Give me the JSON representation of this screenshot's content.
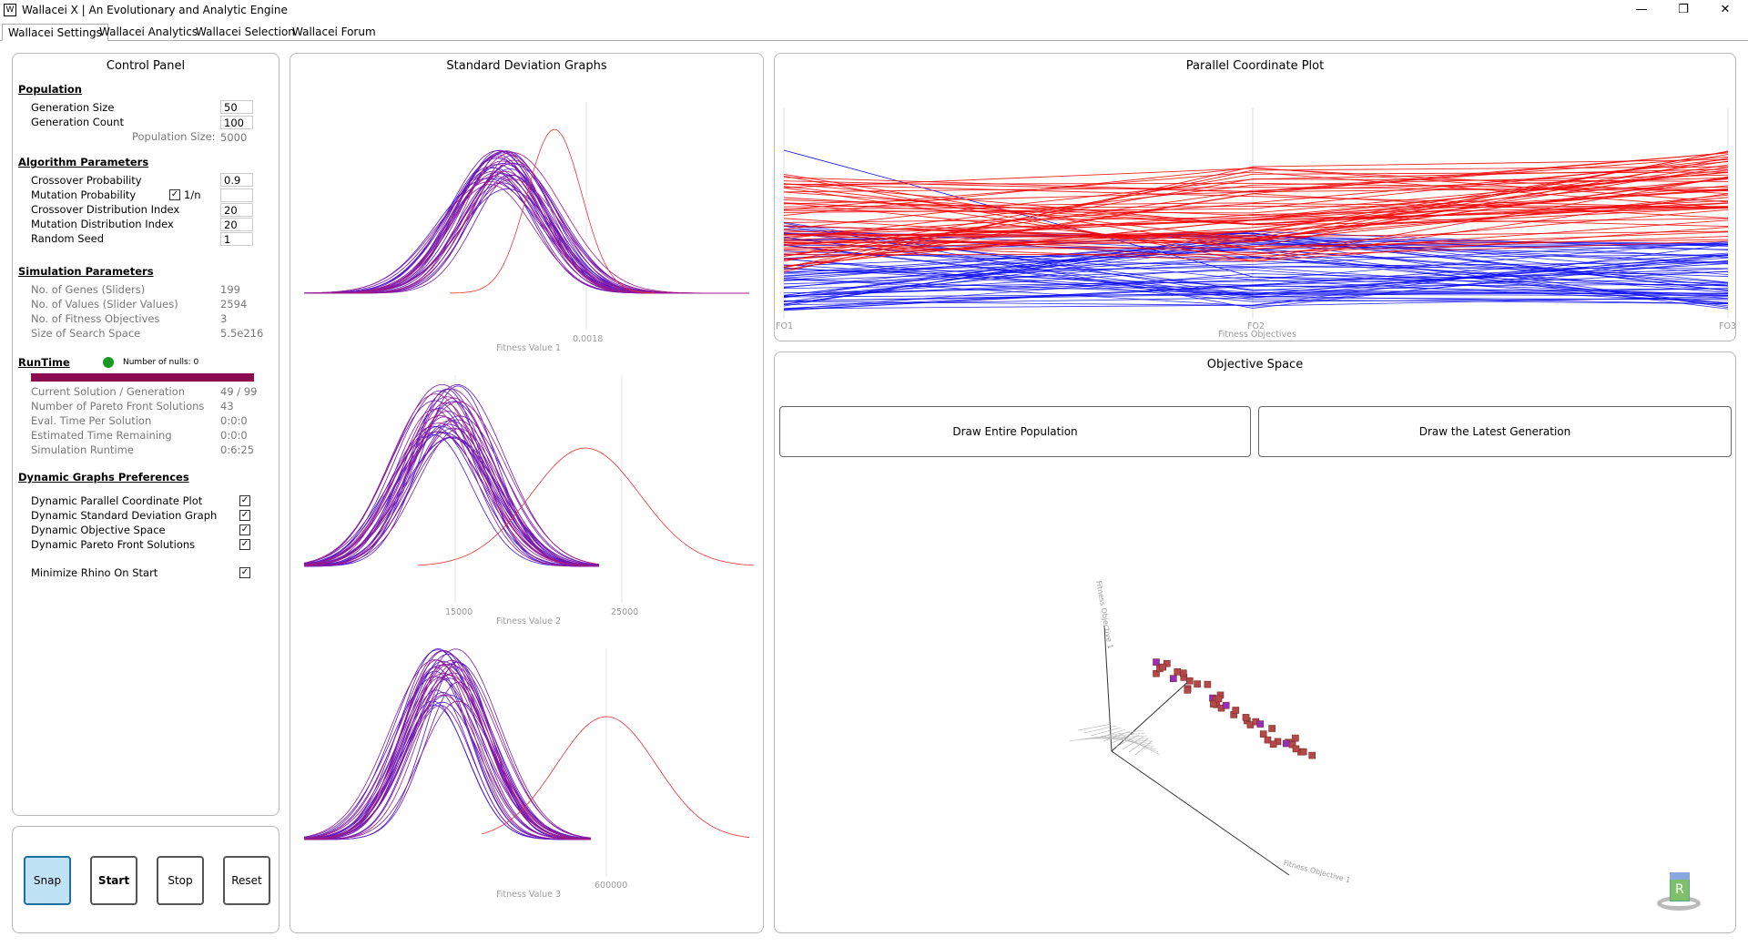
{
  "window": {
    "title": "Wallacei X  |  An Evolutionary and Analytic Engine",
    "minimize": "—",
    "restore": "❐",
    "close": "✕"
  },
  "tabs": [
    "Wallacei Settings",
    "Wallacei Analytics",
    "Wallacei Selection",
    "Wallacei Forum"
  ],
  "control_panel": {
    "title": "Control Panel",
    "population": {
      "heading": "Population",
      "generation_size_label": "Generation Size",
      "generation_size": "50",
      "generation_count_label": "Generation Count",
      "generation_count": "100",
      "population_size_label": "Population Size:",
      "population_size": "5000"
    },
    "algorithm": {
      "heading": "Algorithm Parameters",
      "crossover_probability_label": "Crossover Probability",
      "crossover_probability": "0.9",
      "mutation_probability_label": "Mutation Probability",
      "mutation_one_over_n_label": "1/n",
      "mutation_probability": "",
      "crossover_distribution_label": "Crossover Distribution Index",
      "crossover_distribution": "20",
      "mutation_distribution_label": "Mutation Distribution Index",
      "mutation_distribution": "20",
      "random_seed_label": "Random Seed",
      "random_seed": "1"
    },
    "simulation": {
      "heading": "Simulation Parameters",
      "genes_label": "No. of Genes (Sliders)",
      "genes": "199",
      "values_label": "No. of Values (Slider Values)",
      "values": "2594",
      "objectives_label": "No. of Fitness Objectives",
      "objectives": "3",
      "search_space_label": "Size of Search Space",
      "search_space": "5.5e216"
    },
    "runtime": {
      "heading": "RunTime",
      "nulls_label": "Number of nulls: 0",
      "progress_fraction": 1.0,
      "progress_color": "#8b0a50",
      "status_color": "#159a1f",
      "current_label": "Current Solution / Generation",
      "current": "49 / 99",
      "pareto_label": "Number of Pareto Front Solutions",
      "pareto": "43",
      "eval_label": "Eval. Time Per Solution",
      "eval": "0:0:0",
      "remaining_label": "Estimated Time Remaining",
      "remaining": "0:0:0",
      "runtime_label": "Simulation Runtime",
      "runtime": "0:6:25"
    },
    "preferences": {
      "heading": "Dynamic Graphs Preferences",
      "items": [
        "Dynamic Parallel Coordinate Plot",
        "Dynamic Standard Deviation Graph",
        "Dynamic Objective Space",
        "Dynamic Pareto Front Solutions"
      ],
      "minimize_label": "Minimize Rhino On Start"
    },
    "check_mark": "✓"
  },
  "buttons": {
    "snap": "Snap",
    "start": "Start",
    "stop": "Stop",
    "reset": "Reset"
  },
  "std_graphs": {
    "title": "Standard Deviation Graphs",
    "graph1": {
      "tick": "0.0018",
      "label": "Fitness Value 1"
    },
    "graph2": {
      "tick1": "15000",
      "tick2": "25000",
      "label": "Fitness Value 2"
    },
    "graph3": {
      "tick": "600000",
      "label": "Fitness Value 3"
    }
  },
  "pcp": {
    "title": "Parallel Coordinate Plot",
    "axes": [
      "FO1",
      "FO2",
      "FO3"
    ],
    "xlabel": "Fitness Objectives",
    "colors": {
      "old": "#0a0af0",
      "latest": "#f00a0a"
    }
  },
  "objective_space": {
    "title": "Objective Space",
    "draw_all": "Draw Entire Population",
    "draw_latest": "Draw the Latest Generation",
    "axis1": "Fitness Objective 1",
    "axis2": "Fitness Objective 1",
    "nav_cube": "R"
  }
}
